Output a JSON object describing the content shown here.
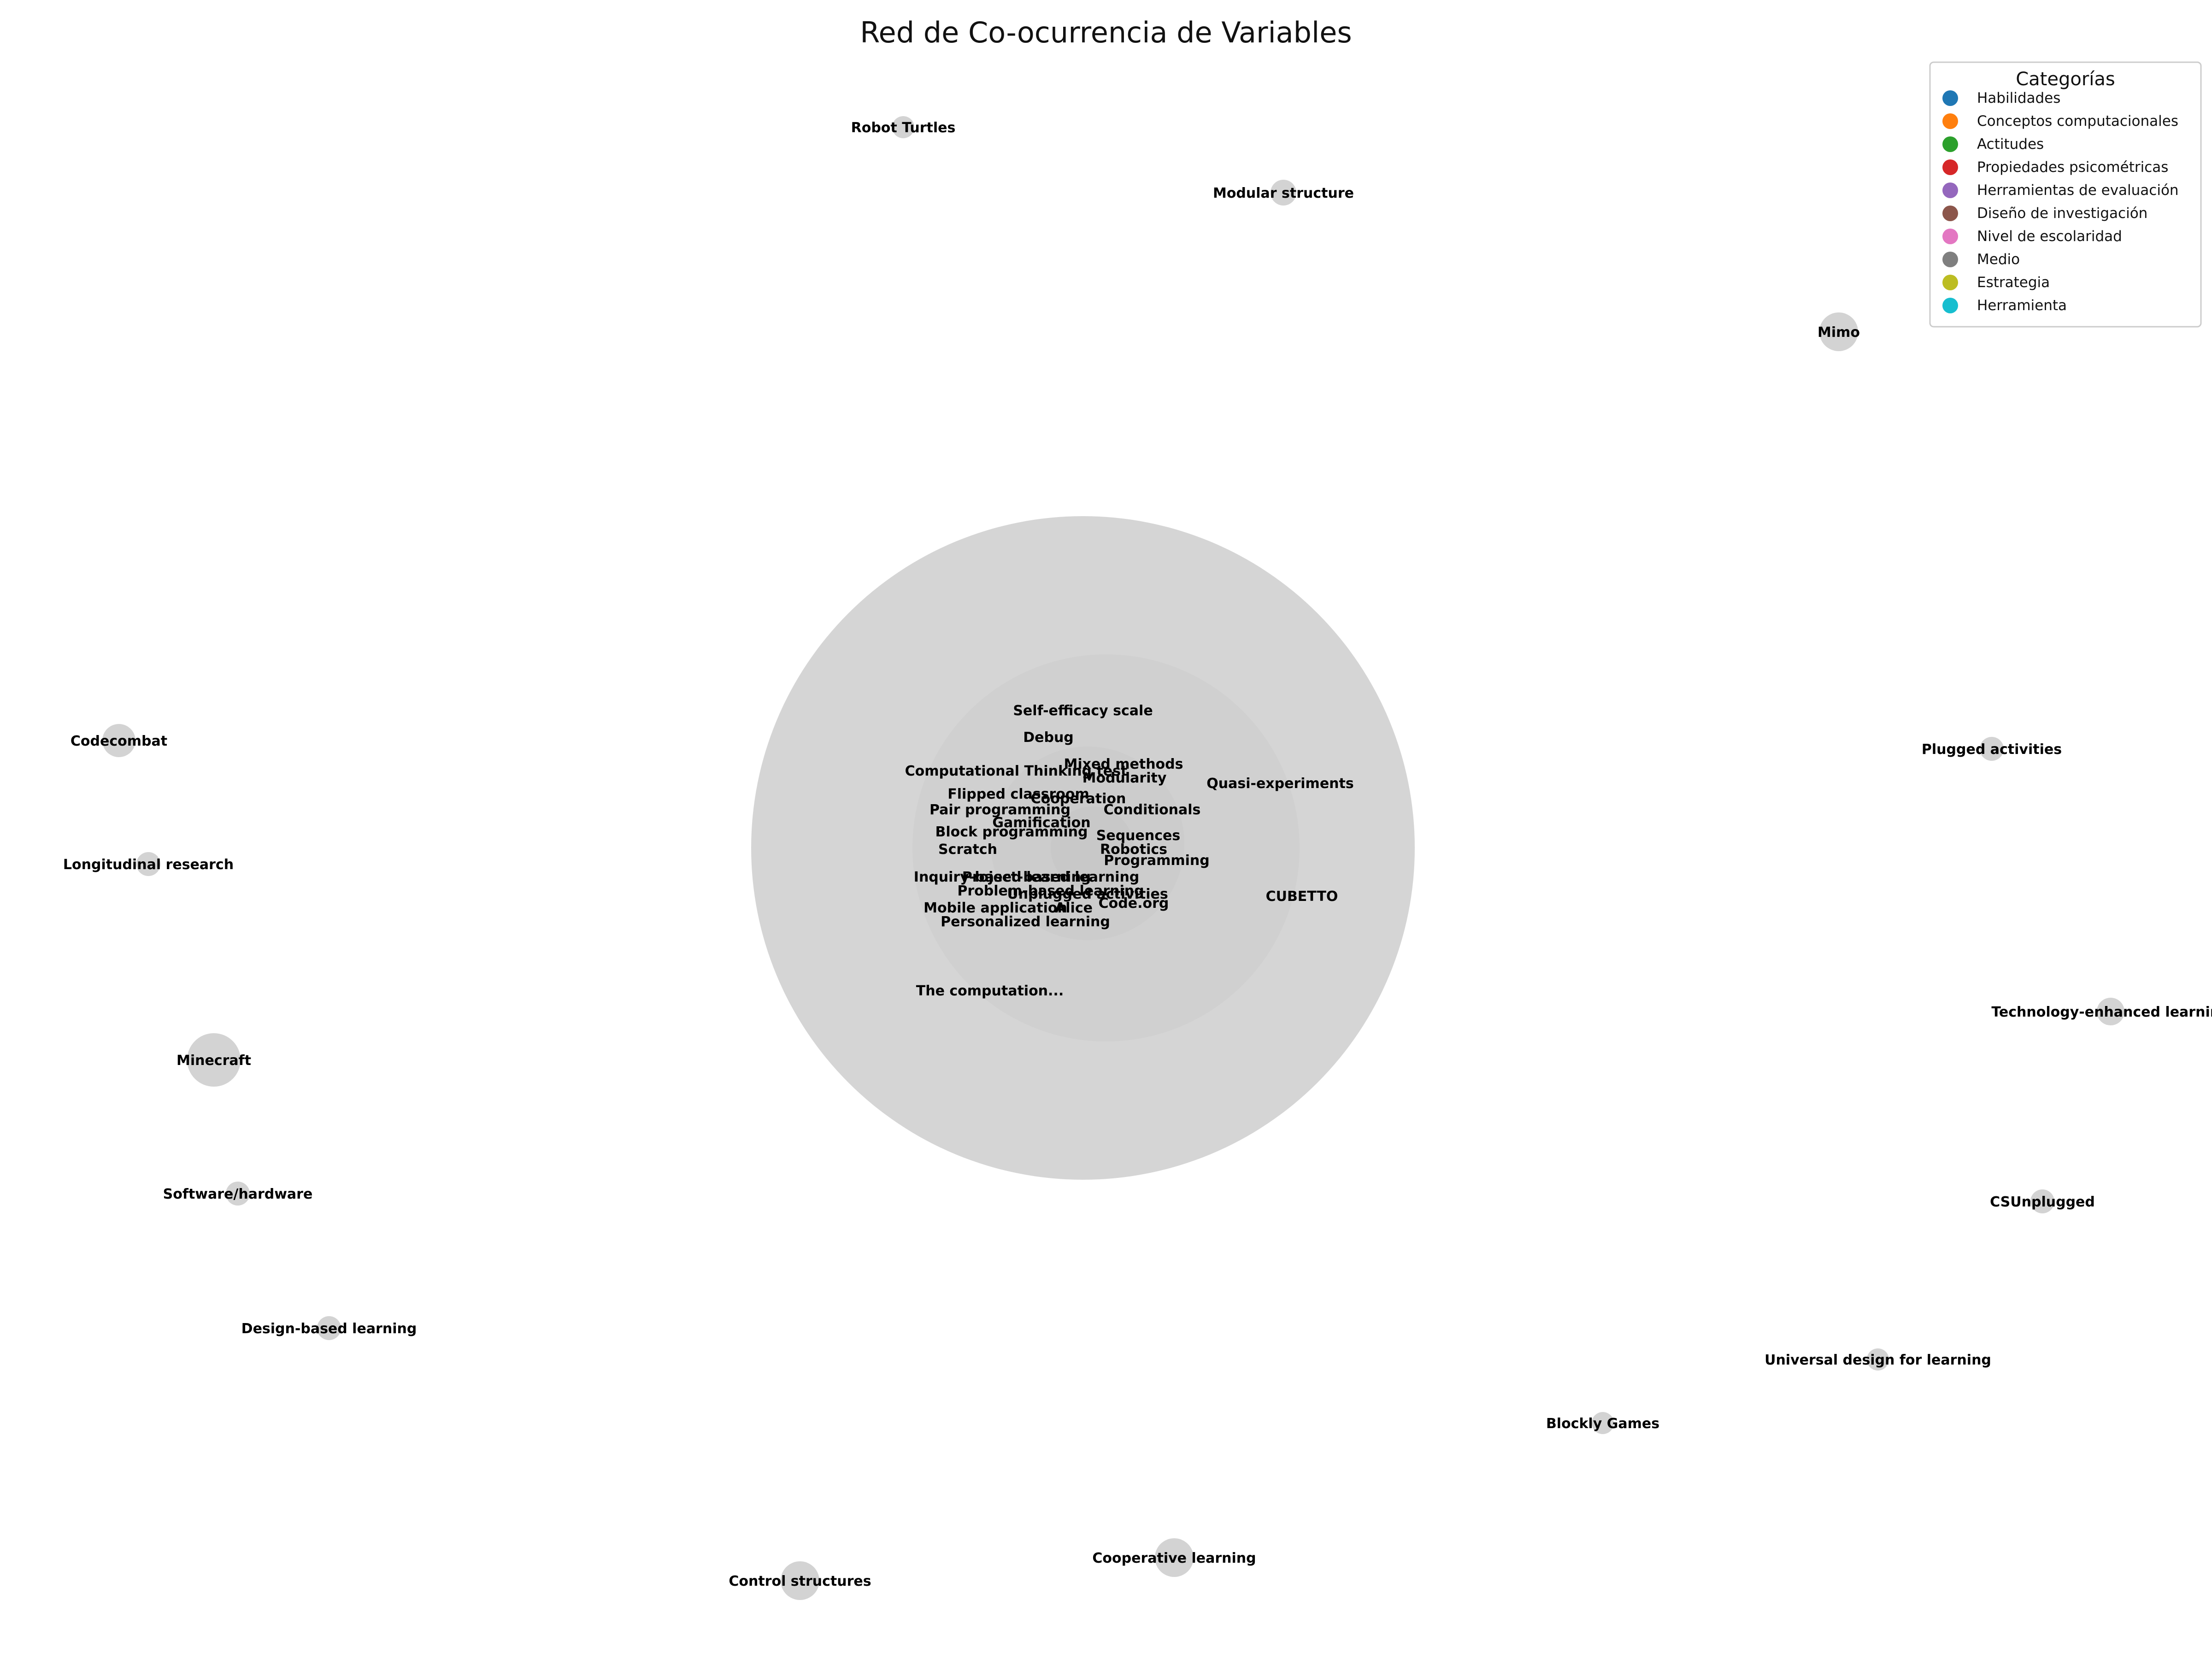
{
  "title": "Red de Co-ocurrencia de Variables",
  "legend": {
    "title": "Categorías",
    "items": [
      {
        "label": "Habilidades",
        "color": "#1f77b4"
      },
      {
        "label": "Conceptos computacionales",
        "color": "#ff7f0e"
      },
      {
        "label": "Actitudes",
        "color": "#2ca02c"
      },
      {
        "label": "Propiedades psicométricas",
        "color": "#d62728"
      },
      {
        "label": "Herramientas de evaluación",
        "color": "#9467bd"
      },
      {
        "label": "Diseño de investigación",
        "color": "#8c564b"
      },
      {
        "label": "Nivel de escolaridad",
        "color": "#e377c2"
      },
      {
        "label": "Medio",
        "color": "#7f7f7f"
      },
      {
        "label": "Estrategia",
        "color": "#bcbd22"
      },
      {
        "label": "Herramienta",
        "color": "#17becf"
      }
    ]
  },
  "node_color": "#d3d3d3",
  "nodes": {
    "outer": [
      "Robot Turtles",
      "Modular structure",
      "Mimo",
      "Plugged activities",
      "Technology-enhanced learning",
      "CSUnplugged",
      "Universal design for learning",
      "Blockly Games",
      "Cooperative learning",
      "Control structures",
      "Design-based learning",
      "Software/hardware",
      "Minecraft",
      "Longitudinal research",
      "Codecombat"
    ],
    "inner": [
      "Self-efficacy scale",
      "Debug",
      "Mixed methods",
      "Modularity",
      "Computational Thinking test",
      "Quasi-experiments",
      "Flipped classroom",
      "Cooperation",
      "Pair programming",
      "Conditionals",
      "Gamification",
      "Block programming",
      "Sequences",
      "Scratch",
      "Robotics",
      "Programming",
      "Inquiry-based learning",
      "Project-based learning",
      "Unplugged activities",
      "Problem-based learning",
      "CUBETTO",
      "Code.org",
      "Mobile application",
      "Alice",
      "Personalized learning",
      "The computation..."
    ]
  }
}
